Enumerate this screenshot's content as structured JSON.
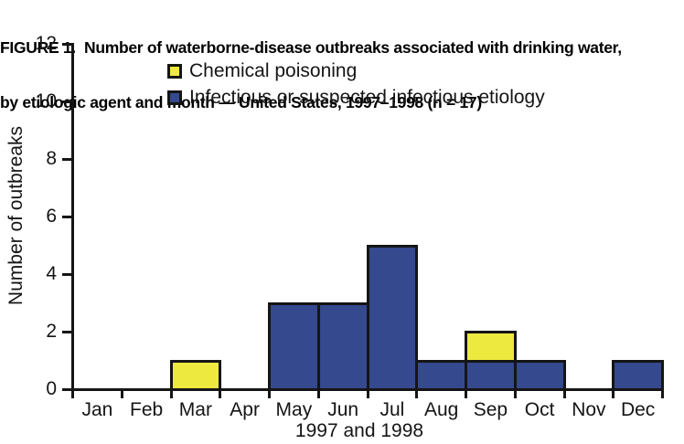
{
  "figure": {
    "title_line1": "FIGURE 1.  Number of waterborne-disease outbreaks associated with drinking water,",
    "title_line2": "by etiologic agent and month — United States, 1997–1998 (n = 17)"
  },
  "chart_data": {
    "type": "bar",
    "stacked": true,
    "title": "FIGURE 1. Number of waterborne-disease outbreaks associated with drinking water, by etiologic agent and month — United States, 1997–1998 (n = 17)",
    "categories": [
      "Jan",
      "Feb",
      "Mar",
      "Apr",
      "May",
      "Jun",
      "Jul",
      "Aug",
      "Sep",
      "Oct",
      "Nov",
      "Dec"
    ],
    "series": [
      {
        "name": "Infectious or suspected infectious etiology",
        "color": "#35498E",
        "values": [
          0,
          0,
          0,
          0,
          3,
          3,
          5,
          1,
          1,
          1,
          0,
          1
        ]
      },
      {
        "name": "Chemical poisoning",
        "color": "#EDE93F",
        "values": [
          0,
          0,
          1,
          0,
          0,
          0,
          0,
          0,
          1,
          0,
          0,
          0
        ]
      }
    ],
    "n_total": 17,
    "xlabel": "1997 and 1998",
    "ylabel": "Number of outbreaks",
    "ylim": [
      0,
      12
    ],
    "yticks": [
      0,
      2,
      4,
      6,
      8,
      10,
      12
    ],
    "grid": false,
    "legend_position": "top-left-inside"
  },
  "legend": {
    "items": [
      {
        "label": "Chemical poisoning",
        "color": "#EDE93F"
      },
      {
        "label": "Infectious or suspected infectious etiology",
        "color": "#35498E"
      }
    ]
  },
  "colors": {
    "chemical": "#EDE93F",
    "infectious": "#35498E",
    "axis": "#151515",
    "background": "#FFFFFF"
  }
}
